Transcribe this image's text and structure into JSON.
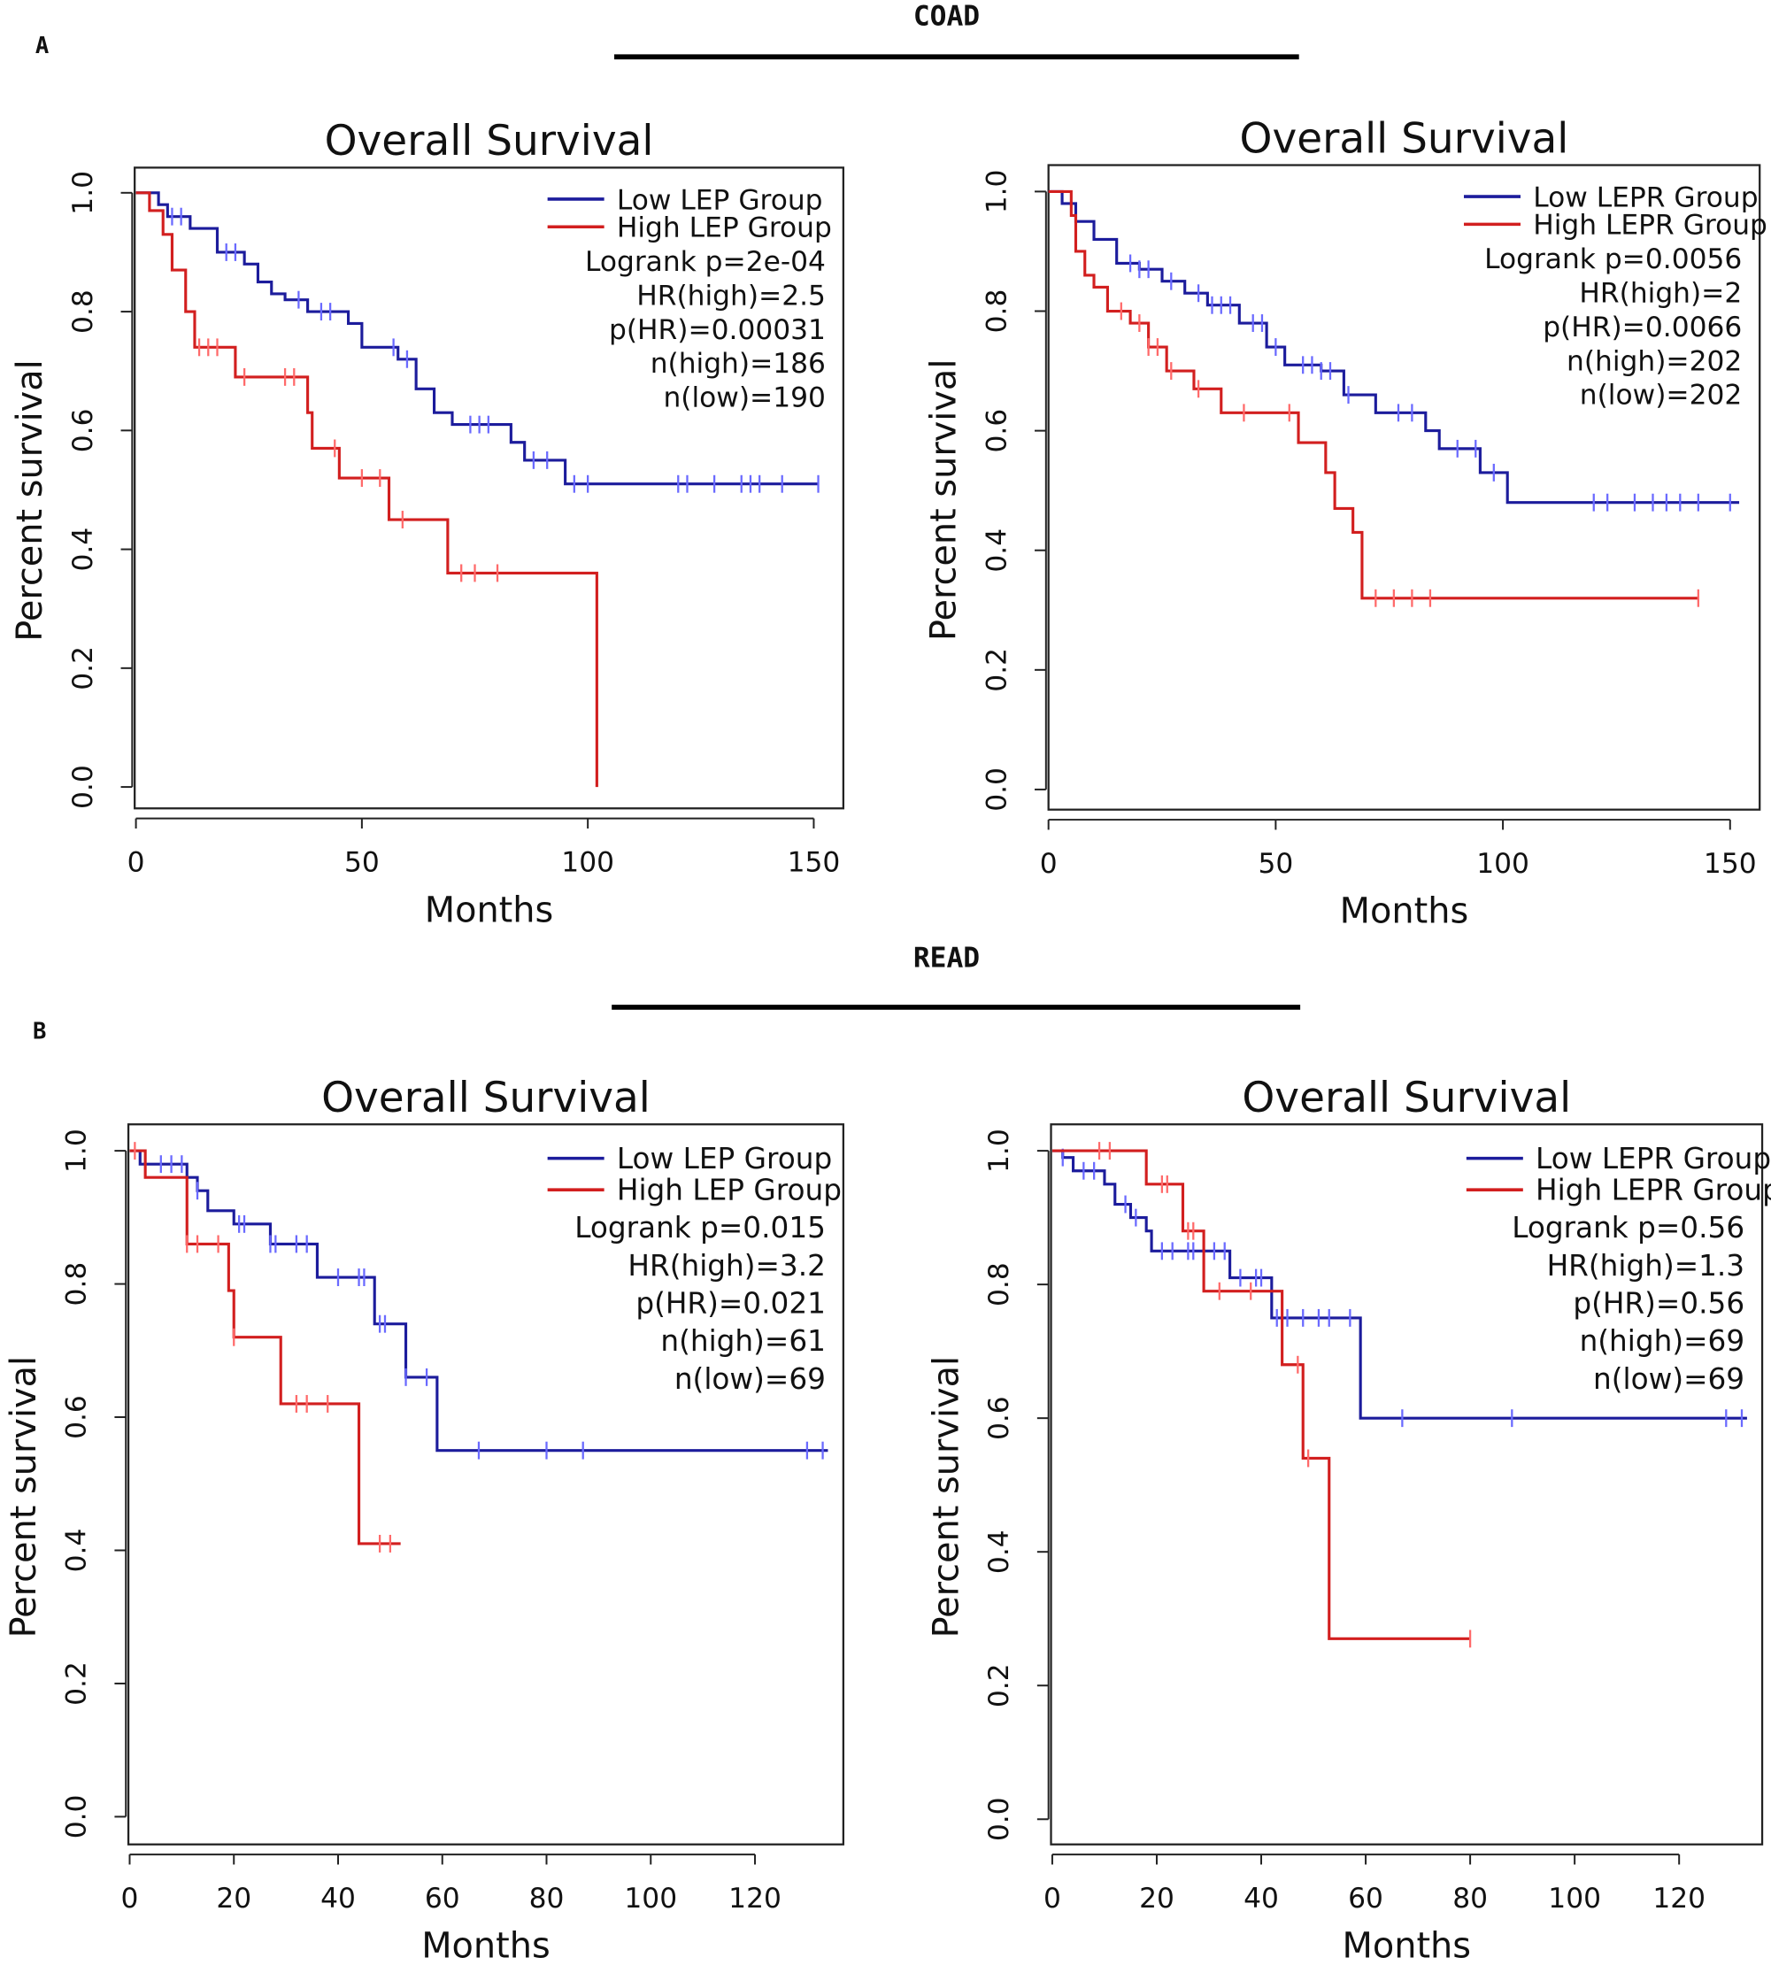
{
  "figure": {
    "panel_a_letter": "A",
    "panel_b_letter": "B",
    "section_a_title": "COAD",
    "section_b_title": "READ"
  },
  "colors": {
    "low": "#1c1c9c",
    "high": "#d21f1f",
    "low_censor": "#6a6aff",
    "high_censor": "#ff6a6a"
  },
  "chart_data": [
    {
      "type": "line",
      "subtype": "kaplan-meier",
      "section": "COAD",
      "title": "Overall Survival",
      "xlabel": "Months",
      "ylabel": "Percent survival",
      "xlim": [
        0,
        150
      ],
      "ylim": [
        0,
        1
      ],
      "xticks": [
        "0",
        "50",
        "100",
        "150"
      ],
      "xtick_values": [
        0,
        50,
        100,
        150
      ],
      "yticks": [
        "0.0",
        "0.2",
        "0.4",
        "0.6",
        "0.8",
        "1.0"
      ],
      "ytick_values": [
        0,
        0.2,
        0.4,
        0.6,
        0.8,
        1.0
      ],
      "legend_position": "top-right",
      "stats": [
        "Logrank p=2e-04",
        "HR(high)=2.5",
        "p(HR)=0.00031",
        "n(high)=186",
        "n(low)=190"
      ],
      "series": [
        {
          "name": "Low LEP Group",
          "group": "low",
          "steps": [
            [
              0,
              1.0
            ],
            [
              5,
              0.98
            ],
            [
              7,
              0.96
            ],
            [
              12,
              0.94
            ],
            [
              18,
              0.9
            ],
            [
              24,
              0.88
            ],
            [
              27,
              0.85
            ],
            [
              30,
              0.83
            ],
            [
              33,
              0.82
            ],
            [
              38,
              0.8
            ],
            [
              47,
              0.78
            ],
            [
              50,
              0.74
            ],
            [
              58,
              0.72
            ],
            [
              62,
              0.67
            ],
            [
              66,
              0.63
            ],
            [
              70,
              0.61
            ],
            [
              83,
              0.58
            ],
            [
              86,
              0.55
            ],
            [
              95,
              0.51
            ],
            [
              151,
              0.51
            ]
          ],
          "censored": [
            8,
            10,
            20,
            22,
            36,
            41,
            43,
            57,
            60,
            74,
            76,
            78,
            88,
            91,
            97,
            100,
            120,
            122,
            128,
            134,
            136,
            138,
            143,
            151
          ]
        },
        {
          "name": "High LEP Group",
          "group": "high",
          "steps": [
            [
              0,
              1.0
            ],
            [
              3,
              0.97
            ],
            [
              6,
              0.93
            ],
            [
              8,
              0.87
            ],
            [
              11,
              0.8
            ],
            [
              13,
              0.74
            ],
            [
              22,
              0.69
            ],
            [
              38,
              0.63
            ],
            [
              39,
              0.57
            ],
            [
              45,
              0.52
            ],
            [
              56,
              0.45
            ],
            [
              69,
              0.36
            ],
            [
              102,
              0.36
            ],
            [
              102,
              0.0
            ]
          ],
          "censored": [
            14,
            16,
            18,
            24,
            33,
            35,
            44,
            50,
            54,
            59,
            72,
            75,
            80
          ]
        }
      ]
    },
    {
      "type": "line",
      "subtype": "kaplan-meier",
      "section": "COAD",
      "title": "Overall Survival",
      "xlabel": "Months",
      "ylabel": "Percent survival",
      "xlim": [
        0,
        150
      ],
      "ylim": [
        0,
        1
      ],
      "xticks": [
        "0",
        "50",
        "100",
        "150"
      ],
      "xtick_values": [
        0,
        50,
        100,
        150
      ],
      "yticks": [
        "0.0",
        "0.2",
        "0.4",
        "0.6",
        "0.8",
        "1.0"
      ],
      "ytick_values": [
        0,
        0.2,
        0.4,
        0.6,
        0.8,
        1.0
      ],
      "legend_position": "top-right",
      "stats": [
        "Logrank p=0.0056",
        "HR(high)=2",
        "p(HR)=0.0066",
        "n(high)=202",
        "n(low)=202"
      ],
      "series": [
        {
          "name": "Low LEPR Group",
          "group": "low",
          "steps": [
            [
              0,
              1.0
            ],
            [
              3,
              0.98
            ],
            [
              6,
              0.95
            ],
            [
              10,
              0.92
            ],
            [
              15,
              0.88
            ],
            [
              20,
              0.87
            ],
            [
              25,
              0.85
            ],
            [
              30,
              0.83
            ],
            [
              35,
              0.81
            ],
            [
              42,
              0.78
            ],
            [
              48,
              0.74
            ],
            [
              52,
              0.71
            ],
            [
              60,
              0.7
            ],
            [
              65,
              0.66
            ],
            [
              72,
              0.63
            ],
            [
              83,
              0.6
            ],
            [
              86,
              0.57
            ],
            [
              95,
              0.53
            ],
            [
              101,
              0.48
            ],
            [
              152,
              0.48
            ]
          ],
          "censored": [
            18,
            20,
            22,
            27,
            33,
            36,
            38,
            40,
            45,
            47,
            50,
            56,
            58,
            60,
            62,
            66,
            77,
            80,
            90,
            94,
            98,
            120,
            123,
            129,
            133,
            136,
            139,
            143,
            150
          ]
        },
        {
          "name": "High LEPR Group",
          "group": "high",
          "steps": [
            [
              0,
              1.0
            ],
            [
              5,
              0.96
            ],
            [
              6,
              0.9
            ],
            [
              8,
              0.86
            ],
            [
              10,
              0.84
            ],
            [
              13,
              0.8
            ],
            [
              18,
              0.78
            ],
            [
              22,
              0.74
            ],
            [
              26,
              0.7
            ],
            [
              32,
              0.67
            ],
            [
              38,
              0.63
            ],
            [
              55,
              0.58
            ],
            [
              61,
              0.53
            ],
            [
              63,
              0.47
            ],
            [
              67,
              0.43
            ],
            [
              69,
              0.32
            ],
            [
              143,
              0.32
            ]
          ],
          "censored": [
            16,
            20,
            22,
            24,
            27,
            33,
            43,
            53,
            72,
            76,
            80,
            84,
            143
          ]
        }
      ]
    },
    {
      "type": "line",
      "subtype": "kaplan-meier",
      "section": "READ",
      "title": "Overall Survival",
      "xlabel": "Months",
      "ylabel": "Percent survival",
      "xlim": [
        0,
        130
      ],
      "ylim": [
        0,
        1
      ],
      "xticks": [
        "0",
        "20",
        "40",
        "60",
        "80",
        "100",
        "120"
      ],
      "xtick_values": [
        0,
        20,
        40,
        60,
        80,
        100,
        120
      ],
      "yticks": [
        "0.0",
        "0.2",
        "0.4",
        "0.6",
        "0.8",
        "1.0"
      ],
      "ytick_values": [
        0,
        0.2,
        0.4,
        0.6,
        0.8,
        1.0
      ],
      "legend_position": "top-right",
      "stats": [
        "Logrank p=0.015",
        "HR(high)=3.2",
        "p(HR)=0.021",
        "n(high)=61",
        "n(low)=69"
      ],
      "series": [
        {
          "name": "Low LEP Group",
          "group": "low",
          "steps": [
            [
              0,
              1.0
            ],
            [
              2,
              0.98
            ],
            [
              11,
              0.96
            ],
            [
              13,
              0.94
            ],
            [
              15,
              0.91
            ],
            [
              20,
              0.89
            ],
            [
              27,
              0.86
            ],
            [
              36,
              0.81
            ],
            [
              47,
              0.74
            ],
            [
              53,
              0.66
            ],
            [
              59,
              0.55
            ],
            [
              134,
              0.55
            ]
          ],
          "censored": [
            3,
            6,
            8,
            10,
            13,
            21,
            22,
            27,
            28,
            32,
            34,
            40,
            44,
            45,
            48,
            49,
            53,
            57,
            67,
            80,
            87,
            130,
            133
          ]
        },
        {
          "name": "High LEP Group",
          "group": "high",
          "steps": [
            [
              0,
              1.0
            ],
            [
              3,
              0.96
            ],
            [
              11,
              0.86
            ],
            [
              19,
              0.79
            ],
            [
              20,
              0.72
            ],
            [
              29,
              0.62
            ],
            [
              44,
              0.41
            ],
            [
              52,
              0.41
            ]
          ],
          "censored": [
            1,
            11,
            13,
            17,
            20,
            32,
            34,
            38,
            48,
            50
          ]
        }
      ]
    },
    {
      "type": "line",
      "subtype": "kaplan-meier",
      "section": "READ",
      "title": "Overall Survival",
      "xlabel": "Months",
      "ylabel": "Percent survival",
      "xlim": [
        0,
        130
      ],
      "ylim": [
        0,
        1
      ],
      "xticks": [
        "0",
        "20",
        "40",
        "60",
        "80",
        "100",
        "120"
      ],
      "xtick_values": [
        0,
        20,
        40,
        60,
        80,
        100,
        120
      ],
      "yticks": [
        "0.0",
        "0.2",
        "0.4",
        "0.6",
        "0.8",
        "1.0"
      ],
      "ytick_values": [
        0,
        0.2,
        0.4,
        0.6,
        0.8,
        1.0
      ],
      "legend_position": "top-right",
      "stats": [
        "Logrank p=0.56",
        "HR(high)=1.3",
        "p(HR)=0.56",
        "n(high)=69",
        "n(low)=69"
      ],
      "series": [
        {
          "name": "Low LEPR Group",
          "group": "low",
          "steps": [
            [
              0,
              1.0
            ],
            [
              2,
              0.99
            ],
            [
              4,
              0.97
            ],
            [
              10,
              0.95
            ],
            [
              12,
              0.92
            ],
            [
              15,
              0.9
            ],
            [
              18,
              0.88
            ],
            [
              19,
              0.85
            ],
            [
              34,
              0.81
            ],
            [
              42,
              0.75
            ],
            [
              59,
              0.6
            ],
            [
              133,
              0.6
            ]
          ],
          "censored": [
            2,
            6,
            8,
            14,
            16,
            21,
            23,
            26,
            27,
            29,
            31,
            33,
            36,
            39,
            40,
            43,
            45,
            48,
            51,
            53,
            57,
            67,
            88,
            129,
            132
          ]
        },
        {
          "name": "High LEPR Group",
          "group": "high",
          "steps": [
            [
              0,
              1.0
            ],
            [
              18,
              0.95
            ],
            [
              25,
              0.88
            ],
            [
              29,
              0.79
            ],
            [
              44,
              0.68
            ],
            [
              48,
              0.54
            ],
            [
              53,
              0.27
            ],
            [
              80,
              0.27
            ]
          ],
          "censored": [
            9,
            11,
            21,
            22,
            26,
            27,
            32,
            38,
            47,
            49,
            80
          ]
        }
      ]
    }
  ]
}
